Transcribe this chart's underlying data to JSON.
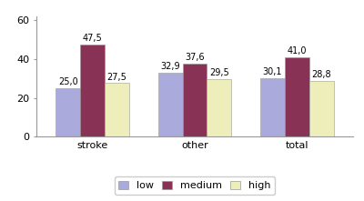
{
  "categories": [
    "stroke",
    "other",
    "total"
  ],
  "series": {
    "low": [
      25.0,
      32.9,
      30.1
    ],
    "medium": [
      47.5,
      37.6,
      41.0
    ],
    "high": [
      27.5,
      29.5,
      28.8
    ]
  },
  "colors": {
    "low": "#aaaadd",
    "medium": "#883355",
    "high": "#eeeebb"
  },
  "bar_width": 0.24,
  "ylim": [
    0,
    62
  ],
  "yticks": [
    0,
    20,
    40,
    60
  ],
  "ylabel": "%",
  "keys": [
    "low",
    "medium",
    "high"
  ],
  "label_fontsize": 7.0,
  "axis_fontsize": 8,
  "legend_fontsize": 8,
  "value_labels": {
    "low": [
      "25,0",
      "32,9",
      "30,1"
    ],
    "medium": [
      "47,5",
      "37,6",
      "41,0"
    ],
    "high": [
      "27,5",
      "29,5",
      "28,8"
    ]
  },
  "background_color": "#ffffff",
  "border_color": "#999999"
}
